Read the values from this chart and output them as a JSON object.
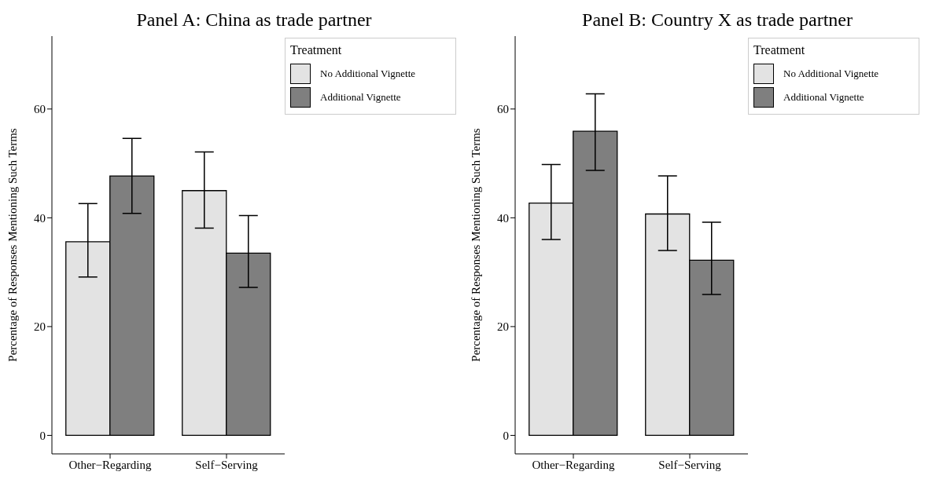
{
  "chart_data": [
    {
      "type": "bar",
      "title": "Panel A: China as trade partner",
      "ylabel": "Percentage of Responses Mentioning Such Terms",
      "legend_title": "Treatment",
      "legend": "top right",
      "categories": [
        "Other−Regarding",
        "Self−Serving"
      ],
      "series": [
        {
          "name": "No Additional Vignette",
          "color": "#e3e3e3",
          "values": [
            35.6,
            45.0
          ],
          "errors": [
            [
              29.1,
              42.6
            ],
            [
              38.1,
              52.1
            ]
          ]
        },
        {
          "name": "Additional Vignette",
          "color": "#7f7f7f",
          "values": [
            47.7,
            33.5
          ],
          "errors": [
            [
              40.8,
              54.6
            ],
            [
              27.2,
              40.4
            ]
          ]
        }
      ],
      "ylim": [
        -3.4,
        73.4
      ],
      "yticks": [
        0,
        20,
        40,
        60
      ]
    },
    {
      "type": "bar",
      "title": "Panel B: Country X as trade partner",
      "ylabel": "Percentage of Responses Mentioning Such Terms",
      "legend_title": "Treatment",
      "legend": "top right",
      "categories": [
        "Other−Regarding",
        "Self−Serving"
      ],
      "series": [
        {
          "name": "No Additional Vignette",
          "color": "#e3e3e3",
          "values": [
            42.7,
            40.7
          ],
          "errors": [
            [
              36.0,
              49.8
            ],
            [
              34.0,
              47.7
            ]
          ]
        },
        {
          "name": "Additional Vignette",
          "color": "#7f7f7f",
          "values": [
            55.9,
            32.2
          ],
          "errors": [
            [
              48.7,
              62.8
            ],
            [
              25.9,
              39.2
            ]
          ]
        }
      ],
      "ylim": [
        -3.4,
        73.4
      ],
      "yticks": [
        0,
        20,
        40,
        60
      ]
    }
  ]
}
